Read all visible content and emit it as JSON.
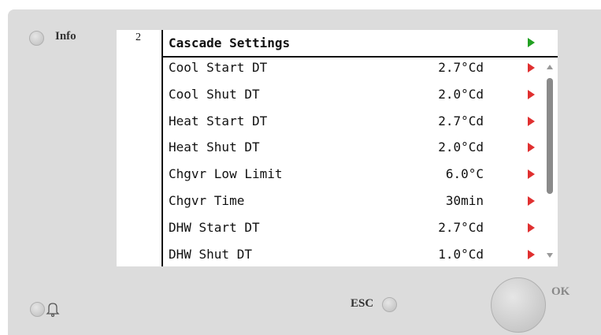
{
  "info_label": "Info",
  "esc_label": "ESC",
  "ok_label": "OK",
  "screen": {
    "index": "2",
    "title": "Cascade Settings",
    "rows": [
      {
        "label": "Cool Start DT",
        "value": "2.7°Cd"
      },
      {
        "label": "Cool Shut DT",
        "value": "2.0°Cd"
      },
      {
        "label": "Heat Start DT",
        "value": "2.7°Cd"
      },
      {
        "label": "Heat Shut DT",
        "value": "2.0°Cd"
      },
      {
        "label": "Chgvr Low Limit",
        "value": "6.0°C"
      },
      {
        "label": "Chgvr Time",
        "value": "30min"
      },
      {
        "label": "DHW Start DT",
        "value": "2.7°Cd"
      },
      {
        "label": "DHW Shut DT",
        "value": "1.0°Cd"
      }
    ]
  }
}
